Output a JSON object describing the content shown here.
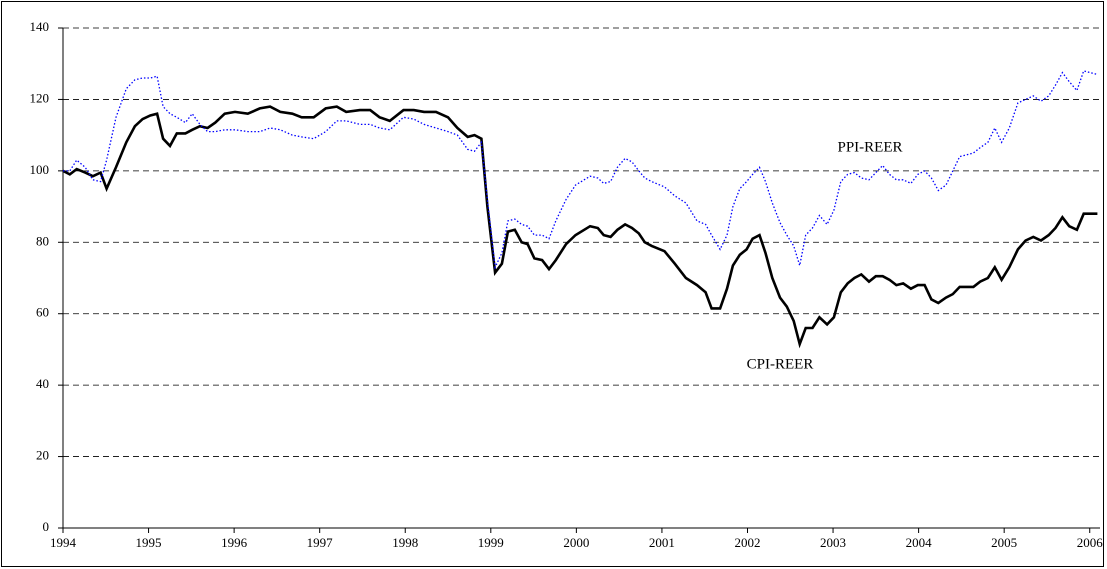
{
  "chart_data": {
    "type": "line",
    "x": [
      1994.0,
      1994.08,
      1994.16,
      1994.26,
      1994.35,
      1994.44,
      1994.51,
      1994.62,
      1994.74,
      1994.84,
      1994.93,
      1995.02,
      1995.1,
      1995.17,
      1995.25,
      1995.33,
      1995.43,
      1995.51,
      1995.6,
      1995.69,
      1995.78,
      1995.89,
      1996.01,
      1996.16,
      1996.3,
      1996.42,
      1996.54,
      1996.68,
      1996.79,
      1996.93,
      1997.07,
      1997.2,
      1997.31,
      1997.47,
      1997.59,
      1997.7,
      1997.82,
      1997.98,
      1998.1,
      1998.22,
      1998.36,
      1998.5,
      1998.61,
      1998.73,
      1998.81,
      1998.89,
      1998.96,
      1999.05,
      1999.13,
      1999.2,
      1999.28,
      1999.36,
      1999.43,
      1999.51,
      1999.6,
      1999.68,
      1999.76,
      1999.88,
      1999.99,
      2000.16,
      2000.25,
      2000.32,
      2000.4,
      2000.48,
      2000.57,
      2000.65,
      2000.73,
      2000.8,
      2000.88,
      2001.03,
      2001.15,
      2001.28,
      2001.41,
      2001.51,
      2001.58,
      2001.68,
      2001.76,
      2001.83,
      2001.91,
      2001.99,
      2002.06,
      2002.14,
      2002.21,
      2002.29,
      2002.38,
      2002.46,
      2002.54,
      2002.61,
      2002.68,
      2002.76,
      2002.84,
      2002.93,
      2003.01,
      2003.09,
      2003.17,
      2003.25,
      2003.33,
      2003.42,
      2003.5,
      2003.58,
      2003.66,
      2003.74,
      2003.82,
      2003.91,
      2003.99,
      2004.07,
      2004.15,
      2004.23,
      2004.32,
      2004.4,
      2004.48,
      2004.56,
      2004.64,
      2004.72,
      2004.81,
      2004.89,
      2004.97,
      2005.06,
      2005.16,
      2005.25,
      2005.34,
      2005.43,
      2005.52,
      2005.6,
      2005.68,
      2005.76,
      2005.85,
      2005.93,
      2006.09
    ],
    "series": [
      {
        "name": "CPI-REER",
        "color": "#000000",
        "dash": "solid",
        "values": [
          100,
          99,
          100.5,
          99.5,
          98.5,
          99.5,
          95,
          101,
          108,
          112.5,
          114.5,
          115.5,
          116,
          109,
          107,
          110.5,
          110.5,
          111.5,
          112.5,
          112,
          113.5,
          116,
          116.5,
          116,
          117.5,
          118,
          116.5,
          116,
          115,
          115,
          117.5,
          118,
          116.5,
          117,
          117,
          115,
          114,
          117,
          117,
          116.5,
          116.5,
          115,
          112,
          109.5,
          110,
          109,
          90,
          71.5,
          74,
          83,
          83.5,
          80,
          79.5,
          75.5,
          75,
          72.5,
          75,
          79.5,
          82,
          84.5,
          84,
          82,
          81.5,
          83.5,
          85,
          84,
          82.5,
          80,
          79,
          77.5,
          74,
          70,
          68,
          66,
          61.5,
          61.5,
          67,
          73.5,
          76.5,
          78,
          81,
          82,
          77,
          70,
          64.5,
          62,
          58,
          51.5,
          56,
          56,
          59,
          57,
          59,
          66,
          68.5,
          70,
          71,
          69,
          70.5,
          70.5,
          69.5,
          68,
          68.5,
          67,
          68,
          68,
          64,
          63,
          64.5,
          65.5,
          67.5,
          67.5,
          67.5,
          69,
          70,
          73,
          69.5,
          73,
          78,
          80.5,
          81.5,
          80.5,
          82,
          84,
          87,
          84.5,
          83.5,
          88,
          88
        ]
      },
      {
        "name": "PPI-REER",
        "color": "#0000ff",
        "dash": "dotted",
        "values": [
          100,
          100,
          103,
          101,
          97.5,
          97,
          103,
          115,
          123,
          125.5,
          126,
          126,
          126.5,
          118,
          116,
          115,
          113.5,
          116,
          113,
          111,
          111,
          111.5,
          111.5,
          111,
          111,
          112,
          111.5,
          110,
          109.5,
          109,
          111,
          114,
          114,
          113,
          113,
          112,
          111.5,
          115,
          114.5,
          113,
          112,
          111,
          110,
          106,
          105.5,
          108,
          92,
          73,
          77,
          86,
          86.5,
          85,
          84.5,
          82,
          82,
          81,
          86,
          92,
          96,
          98.5,
          98,
          96.5,
          97,
          101,
          103.5,
          102.5,
          100,
          98,
          97,
          95.5,
          93,
          91,
          86,
          85,
          82,
          78,
          82,
          90,
          95,
          97,
          99,
          101,
          97,
          91,
          85.5,
          82,
          79,
          73.5,
          82,
          84,
          87.5,
          85,
          89,
          97,
          99,
          99.5,
          98,
          97.5,
          99.5,
          101.5,
          99,
          97.5,
          97.5,
          96.5,
          99,
          100,
          98,
          94.5,
          96,
          100,
          104,
          104.5,
          105,
          106.5,
          108,
          112,
          108,
          112,
          119,
          120,
          121,
          119.5,
          121,
          124,
          127.5,
          125,
          122.5,
          128,
          127
        ]
      }
    ],
    "xlim": [
      1994,
      2006.12
    ],
    "xticks": [
      1994,
      1995,
      1996,
      1997,
      1998,
      1999,
      2000,
      2001,
      2002,
      2003,
      2004,
      2005,
      2006
    ],
    "ylim": [
      0,
      140
    ],
    "yticks": [
      0,
      20,
      40,
      60,
      80,
      100,
      120,
      140
    ],
    "grid": true
  }
}
